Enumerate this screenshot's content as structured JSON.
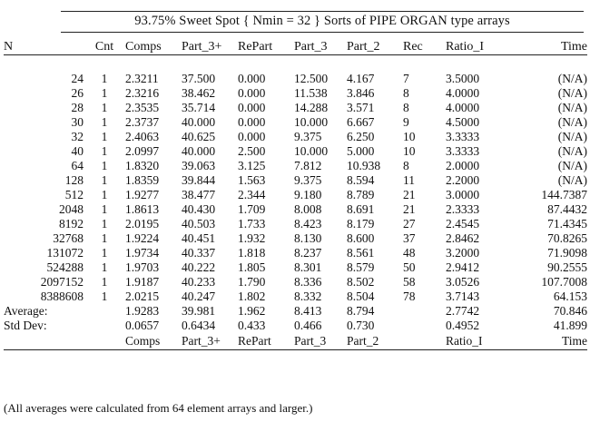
{
  "title": "93.75% Sweet Spot { Nmin = 32 } Sorts of PIPE ORGAN type arrays",
  "headers": [
    "N",
    "Cnt",
    "Comps",
    "Part_3+",
    "RePart",
    "Part_3",
    "Part_2",
    "Rec",
    "Ratio_I",
    "Time"
  ],
  "rows": [
    {
      "n": "24",
      "cnt": "1",
      "comps": "2.3211",
      "part3p": "37.500",
      "repart": "0.000",
      "part3": "12.500",
      "part2": "4.167",
      "rec": "7",
      "ratio": "3.5000",
      "time": "(N/A)"
    },
    {
      "n": "26",
      "cnt": "1",
      "comps": "2.3216",
      "part3p": "38.462",
      "repart": "0.000",
      "part3": "11.538",
      "part2": "3.846",
      "rec": "8",
      "ratio": "4.0000",
      "time": "(N/A)"
    },
    {
      "n": "28",
      "cnt": "1",
      "comps": "2.3535",
      "part3p": "35.714",
      "repart": "0.000",
      "part3": "14.288",
      "part2": "3.571",
      "rec": "8",
      "ratio": "4.0000",
      "time": "(N/A)"
    },
    {
      "n": "30",
      "cnt": "1",
      "comps": "2.3737",
      "part3p": "40.000",
      "repart": "0.000",
      "part3": "10.000",
      "part2": "6.667",
      "rec": "9",
      "ratio": "4.5000",
      "time": "(N/A)"
    },
    {
      "n": "32",
      "cnt": "1",
      "comps": "2.4063",
      "part3p": "40.625",
      "repart": "0.000",
      "part3": "9.375",
      "part2": "6.250",
      "rec": "10",
      "ratio": "3.3333",
      "time": "(N/A)"
    },
    {
      "n": "40",
      "cnt": "1",
      "comps": "2.0997",
      "part3p": "40.000",
      "repart": "2.500",
      "part3": "10.000",
      "part2": "5.000",
      "rec": "10",
      "ratio": "3.3333",
      "time": "(N/A)"
    },
    {
      "n": "64",
      "cnt": "1",
      "comps": "1.8320",
      "part3p": "39.063",
      "repart": "3.125",
      "part3": "7.812",
      "part2": "10.938",
      "rec": "8",
      "ratio": "2.0000",
      "time": "(N/A)"
    },
    {
      "n": "128",
      "cnt": "1",
      "comps": "1.8359",
      "part3p": "39.844",
      "repart": "1.563",
      "part3": "9.375",
      "part2": "8.594",
      "rec": "11",
      "ratio": "2.2000",
      "time": "(N/A)"
    },
    {
      "n": "512",
      "cnt": "1",
      "comps": "1.9277",
      "part3p": "38.477",
      "repart": "2.344",
      "part3": "9.180",
      "part2": "8.789",
      "rec": "21",
      "ratio": "3.0000",
      "time": "144.7387"
    },
    {
      "n": "2048",
      "cnt": "1",
      "comps": "1.8613",
      "part3p": "40.430",
      "repart": "1.709",
      "part3": "8.008",
      "part2": "8.691",
      "rec": "21",
      "ratio": "2.3333",
      "time": "87.4432"
    },
    {
      "n": "8192",
      "cnt": "1",
      "comps": "2.0195",
      "part3p": "40.503",
      "repart": "1.733",
      "part3": "8.423",
      "part2": "8.179",
      "rec": "27",
      "ratio": "2.4545",
      "time": "71.4345"
    },
    {
      "n": "32768",
      "cnt": "1",
      "comps": "1.9224",
      "part3p": "40.451",
      "repart": "1.932",
      "part3": "8.130",
      "part2": "8.600",
      "rec": "37",
      "ratio": "2.8462",
      "time": "70.8265"
    },
    {
      "n": "131072",
      "cnt": "1",
      "comps": "1.9734",
      "part3p": "40.337",
      "repart": "1.818",
      "part3": "8.237",
      "part2": "8.561",
      "rec": "48",
      "ratio": "3.2000",
      "time": "71.9098"
    },
    {
      "n": "524288",
      "cnt": "1",
      "comps": "1.9703",
      "part3p": "40.222",
      "repart": "1.805",
      "part3": "8.301",
      "part2": "8.579",
      "rec": "50",
      "ratio": "2.9412",
      "time": "90.2555"
    },
    {
      "n": "2097152",
      "cnt": "1",
      "comps": "1.9187",
      "part3p": "40.233",
      "repart": "1.790",
      "part3": "8.336",
      "part2": "8.502",
      "rec": "58",
      "ratio": "3.0526",
      "time": "107.7008"
    },
    {
      "n": "8388608",
      "cnt": "1",
      "comps": "2.0215",
      "part3p": "40.247",
      "repart": "1.802",
      "part3": "8.332",
      "part2": "8.504",
      "rec": "78",
      "ratio": "3.7143",
      "time": "64.153"
    }
  ],
  "summary": [
    {
      "label": "Average:",
      "comps": "1.9283",
      "part3p": "39.981",
      "repart": "1.962",
      "part3": "8.413",
      "part2": "8.794",
      "ratio": "2.7742",
      "time": "70.846"
    },
    {
      "label": "Std Dev:",
      "comps": "0.0657",
      "part3p": "0.6434",
      "repart": "0.433",
      "part3": "0.466",
      "part2": "0.730",
      "ratio": "0.4952",
      "time": "41.899"
    }
  ],
  "footer_headers": {
    "comps": "Comps",
    "part3p": "Part_3+",
    "repart": "RePart",
    "part3": "Part_3",
    "part2": "Part_2",
    "ratio": "Ratio_I",
    "time": "Time"
  },
  "note": "(All averages were calculated from 64 element arrays and larger.)"
}
